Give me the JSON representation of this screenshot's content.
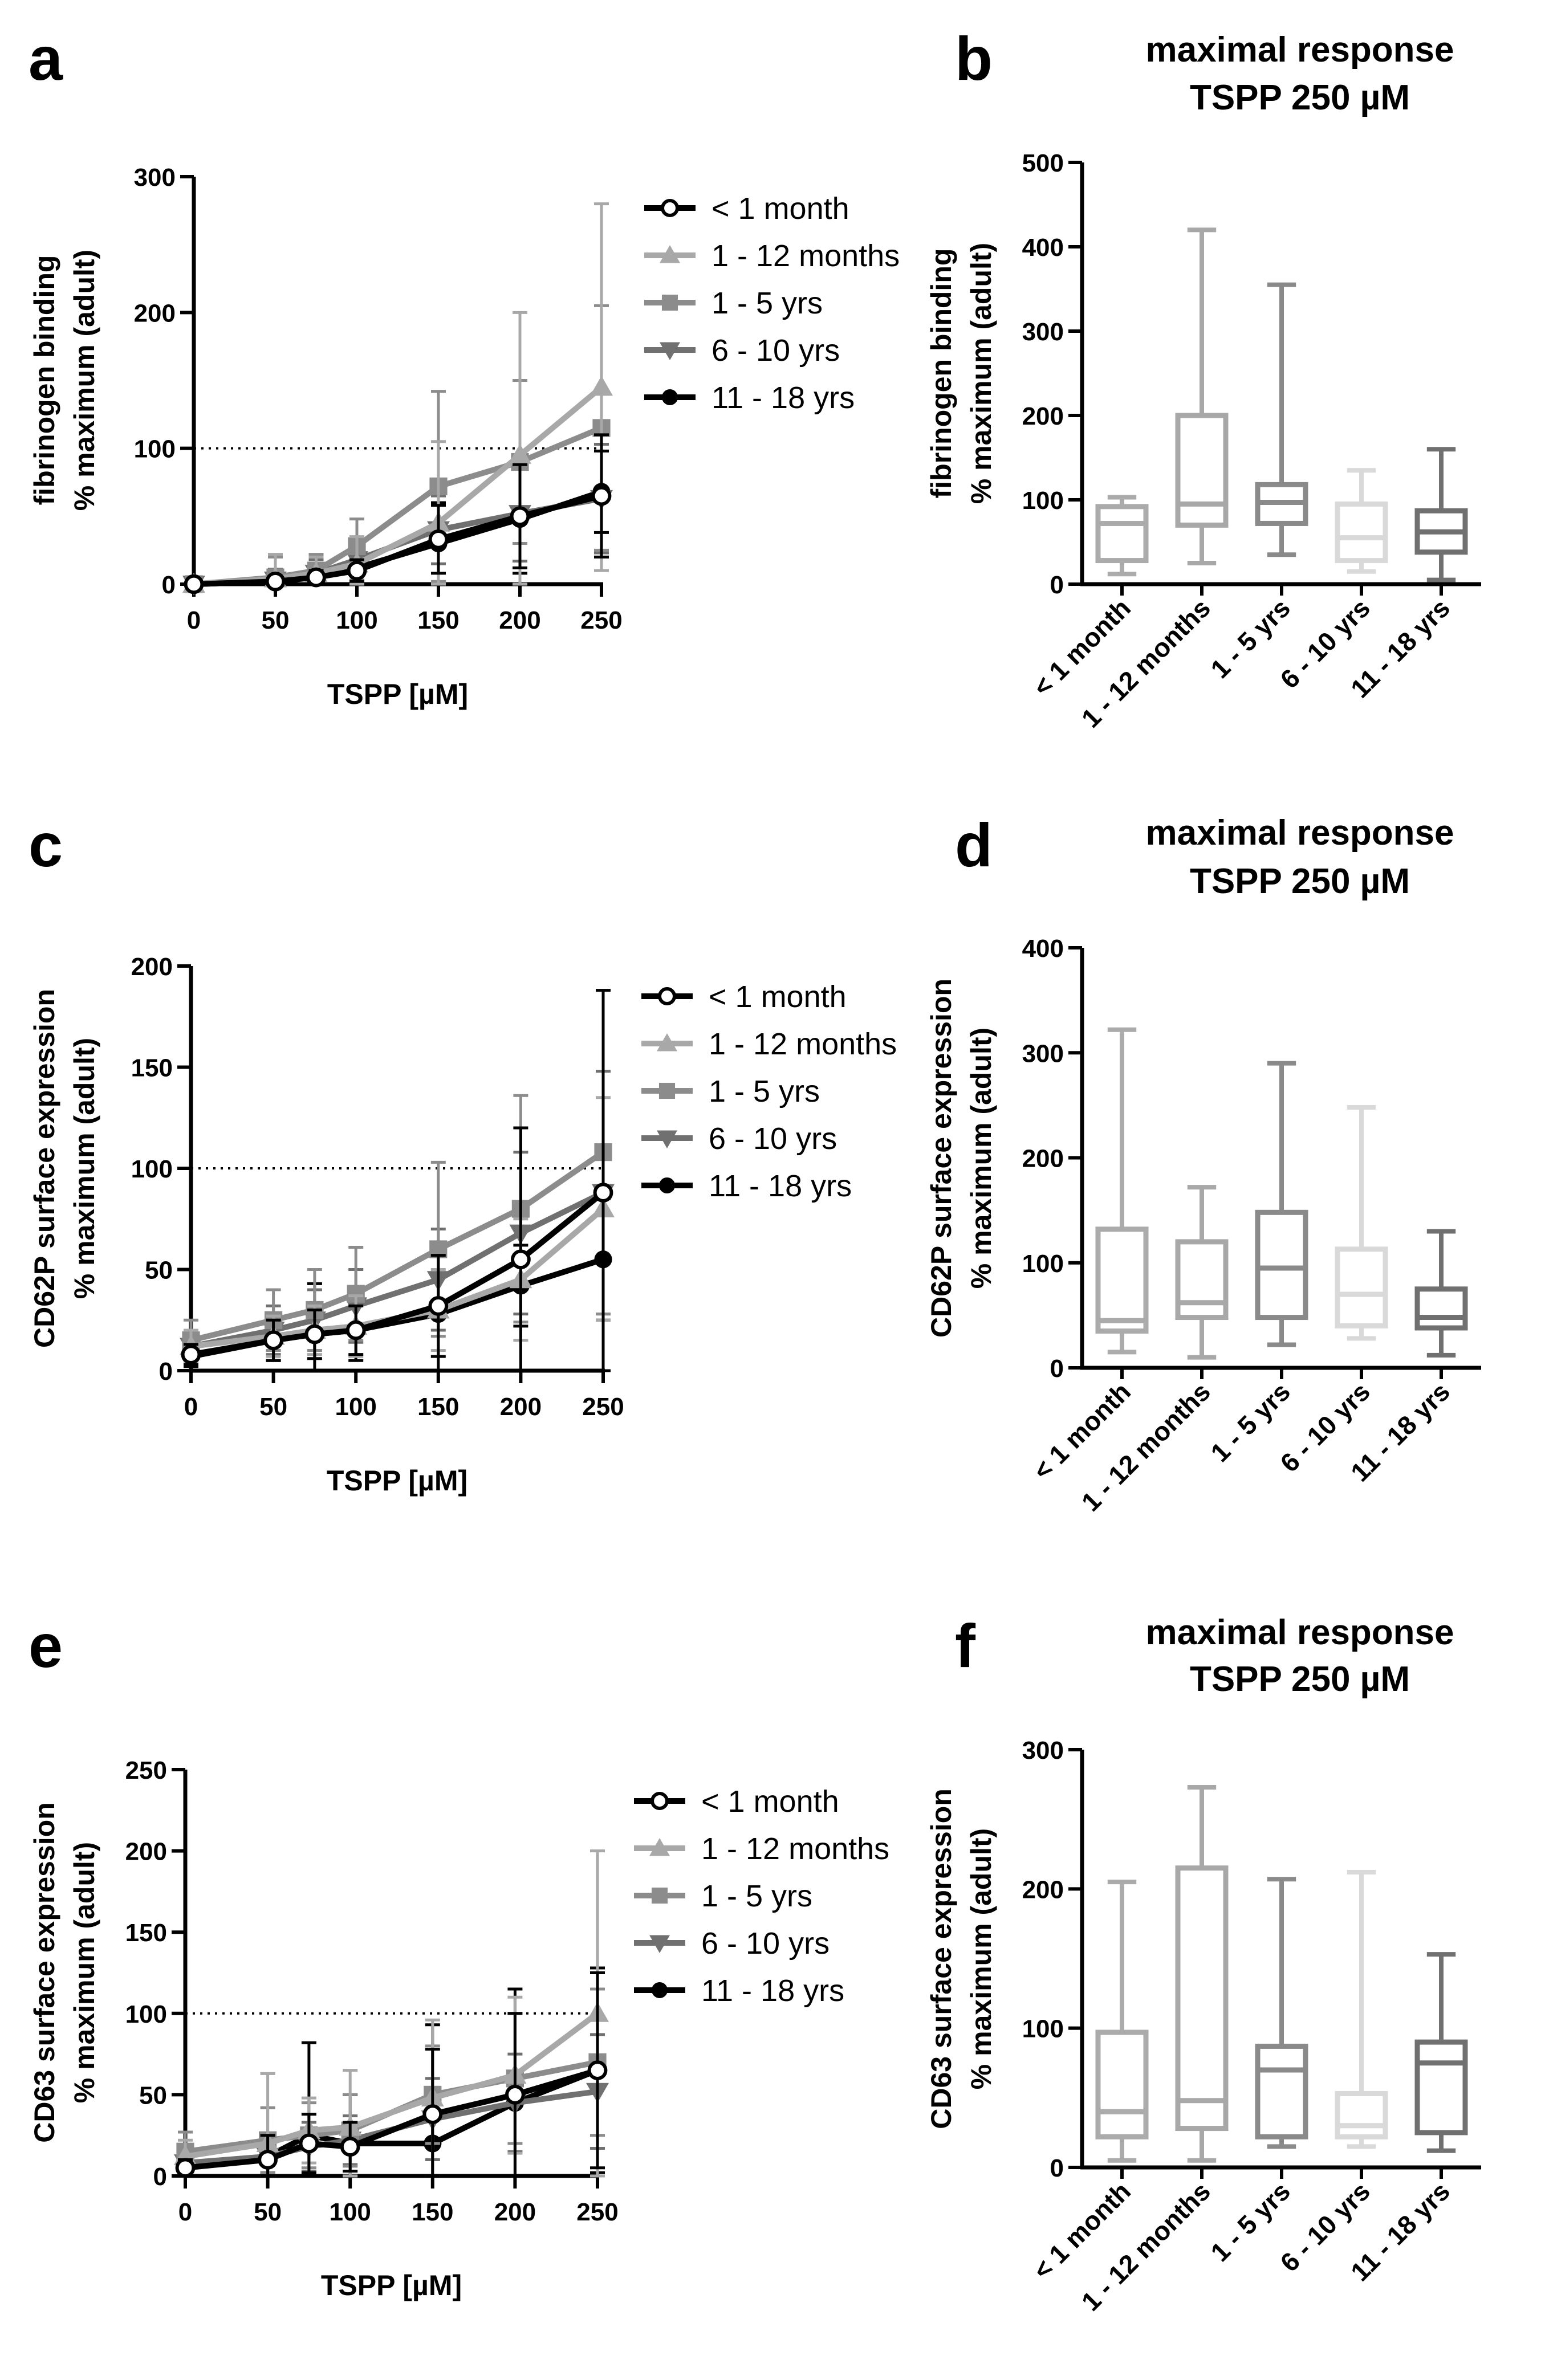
{
  "panels": {
    "a": "a",
    "b": "b",
    "c": "c",
    "d": "d",
    "e": "e",
    "f": "f"
  },
  "colors": {
    "lt1m": "#000000",
    "m1_12": "#a8a8a8",
    "y1_5": "#8c8c8c",
    "y6_10": "#707070",
    "y11_18": "#000000",
    "box_lt1m": "#ababab",
    "box_m1_12": "#a8a8a8",
    "box_y1_5": "#8a8a8a",
    "box_y6_10": "#d9d9d9",
    "box_y11_18": "#707070"
  },
  "chart_data": [
    {
      "id": "a",
      "type": "line",
      "ylabel_line1": "fibrinogen binding",
      "ylabel_line2": "% maximum (adult)",
      "xlabel": "TSPP [µM]",
      "xlim": [
        0,
        250
      ],
      "ylim": [
        0,
        300
      ],
      "xticks": [
        0,
        50,
        100,
        150,
        200,
        250
      ],
      "yticks": [
        0,
        100,
        200,
        300
      ],
      "reference_line": 100,
      "x": [
        0,
        50,
        75,
        100,
        150,
        200,
        250
      ],
      "series": [
        {
          "name": "< 1 month",
          "marker": "open-circle",
          "color_key": "lt1m",
          "values": [
            0,
            2,
            5,
            10,
            33,
            50,
            65
          ],
          "err": [
            0,
            3,
            5,
            8,
            25,
            38,
            45
          ]
        },
        {
          "name": "1 - 12 months",
          "marker": "triangle-up",
          "color_key": "m1_12",
          "values": [
            0,
            4,
            8,
            15,
            45,
            95,
            145
          ],
          "err": [
            0,
            18,
            12,
            20,
            60,
            105,
            135
          ]
        },
        {
          "name": "1 - 5 yrs",
          "marker": "square",
          "color_key": "y1_5",
          "values": [
            0,
            5,
            10,
            28,
            72,
            90,
            115
          ],
          "err": [
            0,
            15,
            12,
            20,
            70,
            60,
            90
          ]
        },
        {
          "name": "6 - 10 yrs",
          "marker": "triangle-down",
          "color_key": "y6_10",
          "values": [
            0,
            3,
            8,
            18,
            40,
            52,
            63
          ],
          "err": [
            0,
            8,
            10,
            15,
            25,
            35,
            40
          ]
        },
        {
          "name": "11 - 18 yrs",
          "marker": "filled-circle",
          "color_key": "y11_18",
          "values": [
            0,
            2,
            6,
            12,
            30,
            48,
            68
          ],
          "err": [
            0,
            5,
            8,
            12,
            30,
            40,
            30
          ]
        }
      ]
    },
    {
      "id": "b",
      "type": "box",
      "title_line1": "maximal response",
      "title_line2": "TSPP 250 µM",
      "ylabel_line1": "fibrinogen binding",
      "ylabel_line2": "% maximum (adult)",
      "ylim": [
        0,
        500
      ],
      "yticks": [
        0,
        100,
        200,
        300,
        400,
        500
      ],
      "categories": [
        "< 1 month",
        "1 - 12 months",
        "1 - 5 yrs",
        "6 - 10 yrs",
        "11 - 18 yrs"
      ],
      "color_keys": [
        "box_lt1m",
        "box_m1_12",
        "box_y1_5",
        "box_y6_10",
        "box_y11_18"
      ],
      "boxes": [
        {
          "min": 12,
          "q1": 28,
          "median": 72,
          "q3": 92,
          "max": 103
        },
        {
          "min": 25,
          "q1": 70,
          "median": 95,
          "q3": 200,
          "max": 420
        },
        {
          "min": 35,
          "q1": 72,
          "median": 97,
          "q3": 118,
          "max": 355
        },
        {
          "min": 15,
          "q1": 28,
          "median": 55,
          "q3": 95,
          "max": 135
        },
        {
          "min": 5,
          "q1": 38,
          "median": 62,
          "q3": 87,
          "max": 160
        }
      ]
    },
    {
      "id": "c",
      "type": "line",
      "ylabel_line1": "CD62P surface expression",
      "ylabel_line2": "% maximum (adult)",
      "xlabel": "TSPP [µM]",
      "xlim": [
        0,
        250
      ],
      "ylim": [
        0,
        200
      ],
      "xticks": [
        0,
        50,
        100,
        150,
        200,
        250
      ],
      "yticks": [
        0,
        50,
        100,
        150,
        200
      ],
      "reference_line": 100,
      "x": [
        0,
        50,
        75,
        100,
        150,
        200,
        250
      ],
      "series": [
        {
          "name": "< 1 month",
          "marker": "open-circle",
          "color_key": "lt1m",
          "values": [
            8,
            15,
            18,
            20,
            32,
            55,
            88
          ],
          "err": [
            5,
            10,
            12,
            12,
            25,
            65,
            100
          ]
        },
        {
          "name": "1 - 12 months",
          "marker": "triangle-up",
          "color_key": "m1_12",
          "values": [
            12,
            17,
            20,
            22,
            30,
            45,
            80
          ],
          "err": [
            8,
            10,
            12,
            15,
            20,
            30,
            55
          ]
        },
        {
          "name": "1 - 5 yrs",
          "marker": "square",
          "color_key": "y1_5",
          "values": [
            15,
            25,
            30,
            38,
            60,
            80,
            108
          ],
          "err": [
            10,
            15,
            20,
            23,
            43,
            56,
            80
          ]
        },
        {
          "name": "6 - 10 yrs",
          "marker": "triangle-down",
          "color_key": "y6_10",
          "values": [
            12,
            20,
            25,
            32,
            45,
            68,
            88
          ],
          "err": [
            8,
            12,
            15,
            18,
            25,
            40,
            60
          ]
        },
        {
          "name": "11 - 18 yrs",
          "marker": "filled-circle",
          "color_key": "y11_18",
          "values": [
            7,
            15,
            18,
            20,
            28,
            42,
            55
          ],
          "err": [
            5,
            10,
            25,
            15,
            30,
            20,
            30
          ]
        }
      ]
    },
    {
      "id": "d",
      "type": "box",
      "title_line1": "maximal response",
      "title_line2": "TSPP 250 µM",
      "ylabel_line1": "CD62P surface expression",
      "ylabel_line2": "% maximum (adult)",
      "ylim": [
        0,
        400
      ],
      "yticks": [
        0,
        100,
        200,
        300,
        400
      ],
      "categories": [
        "< 1 month",
        "1 - 12 months",
        "1 - 5 yrs",
        "6 - 10 yrs",
        "11 - 18 yrs"
      ],
      "color_keys": [
        "box_lt1m",
        "box_m1_12",
        "box_y1_5",
        "box_y6_10",
        "box_y11_18"
      ],
      "boxes": [
        {
          "min": 15,
          "q1": 35,
          "median": 45,
          "q3": 132,
          "max": 322
        },
        {
          "min": 10,
          "q1": 48,
          "median": 62,
          "q3": 120,
          "max": 172
        },
        {
          "min": 22,
          "q1": 48,
          "median": 95,
          "q3": 148,
          "max": 290
        },
        {
          "min": 28,
          "q1": 40,
          "median": 70,
          "q3": 113,
          "max": 248
        },
        {
          "min": 12,
          "q1": 38,
          "median": 48,
          "q3": 75,
          "max": 130
        }
      ]
    },
    {
      "id": "e",
      "type": "line",
      "ylabel_line1": "CD63 surface expression",
      "ylabel_line2": "% maximum (adult)",
      "xlabel": "TSPP [µM]",
      "xlim": [
        0,
        250
      ],
      "ylim": [
        0,
        250
      ],
      "xticks": [
        0,
        50,
        100,
        150,
        200,
        250
      ],
      "yticks": [
        0,
        50,
        100,
        150,
        200,
        250
      ],
      "reference_line": 100,
      "x": [
        0,
        50,
        75,
        100,
        150,
        200,
        250
      ],
      "series": [
        {
          "name": "< 1 month",
          "marker": "open-circle",
          "color_key": "lt1m",
          "values": [
            5,
            10,
            20,
            18,
            38,
            50,
            65
          ],
          "err": [
            5,
            15,
            18,
            15,
            40,
            50,
            60
          ]
        },
        {
          "name": "1 - 12 months",
          "marker": "triangle-up",
          "color_key": "m1_12",
          "values": [
            12,
            20,
            28,
            30,
            48,
            62,
            100
          ],
          "err": [
            10,
            43,
            20,
            35,
            48,
            48,
            100
          ]
        },
        {
          "name": "1 - 5 yrs",
          "marker": "square",
          "color_key": "y1_5",
          "values": [
            15,
            22,
            25,
            28,
            50,
            60,
            70
          ],
          "err": [
            12,
            20,
            20,
            22,
            30,
            40,
            45
          ]
        },
        {
          "name": "6 - 10 yrs",
          "marker": "triangle-down",
          "color_key": "y6_10",
          "values": [
            8,
            12,
            18,
            22,
            35,
            45,
            52
          ],
          "err": [
            6,
            10,
            15,
            15,
            25,
            30,
            35
          ]
        },
        {
          "name": "11 - 18 yrs",
          "marker": "filled-circle",
          "color_key": "y11_18",
          "values": [
            5,
            12,
            25,
            20,
            20,
            45,
            65
          ],
          "err": [
            4,
            10,
            57,
            30,
            73,
            70,
            63
          ]
        }
      ]
    },
    {
      "id": "f",
      "type": "box",
      "title_line1": "maximal response",
      "title_line2": "TSPP 250 µM",
      "ylabel_line1": "CD63 surface expression",
      "ylabel_line2": "% maximum (adult)",
      "ylim": [
        0,
        300
      ],
      "yticks": [
        0,
        100,
        200,
        300
      ],
      "categories": [
        "< 1 month",
        "1 - 12 months",
        "1 - 5 yrs",
        "6 - 10 yrs",
        "11 - 18 yrs"
      ],
      "color_keys": [
        "box_lt1m",
        "box_m1_12",
        "box_y1_5",
        "box_y6_10",
        "box_y11_18"
      ],
      "boxes": [
        {
          "min": 5,
          "q1": 22,
          "median": 40,
          "q3": 97,
          "max": 205
        },
        {
          "min": 5,
          "q1": 28,
          "median": 48,
          "q3": 215,
          "max": 273
        },
        {
          "min": 15,
          "q1": 22,
          "median": 70,
          "q3": 87,
          "max": 207
        },
        {
          "min": 15,
          "q1": 22,
          "median": 30,
          "q3": 53,
          "max": 212
        },
        {
          "min": 12,
          "q1": 25,
          "median": 75,
          "q3": 90,
          "max": 153
        }
      ]
    }
  ]
}
